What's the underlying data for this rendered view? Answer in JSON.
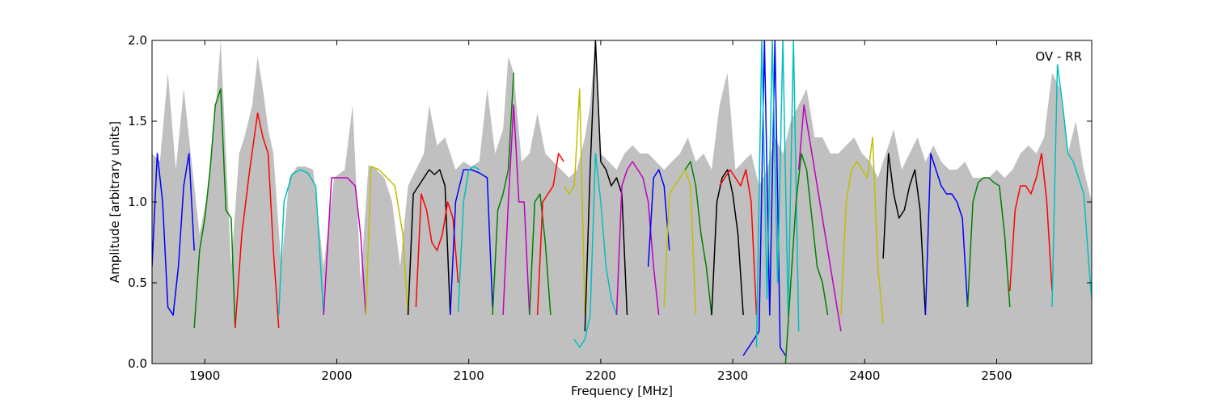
{
  "chart_data": {
    "type": "line",
    "title": "",
    "xlabel": "Frequency [MHz]",
    "ylabel": "Amplitude [arbitrary units]",
    "annotation": "OV - RR",
    "xlim": [
      1860,
      2572
    ],
    "ylim": [
      0.0,
      2.0
    ],
    "x_ticks": [
      1900,
      2000,
      2100,
      2200,
      2300,
      2400,
      2500
    ],
    "y_ticks": [
      0.0,
      0.5,
      1.0,
      1.5,
      2.0
    ],
    "y_tick_labels": [
      "0.0",
      "0.5",
      "1.0",
      "1.5",
      "2.0"
    ],
    "grid": false,
    "background_color": "#c0c0c0",
    "background_series": {
      "x": [
        1860,
        1866,
        1872,
        1878,
        1884,
        1890,
        1896,
        1902,
        1908,
        1912,
        1916,
        1920,
        1926,
        1930,
        1936,
        1940,
        1944,
        1948,
        1952,
        1958,
        1964,
        1970,
        1976,
        1982,
        1990,
        1998,
        2006,
        2012,
        2018,
        2024,
        2030,
        2036,
        2042,
        2048,
        2054,
        2060,
        2066,
        2070,
        2076,
        2082,
        2090,
        2096,
        2102,
        2108,
        2114,
        2120,
        2126,
        2130,
        2134,
        2140,
        2146,
        2152,
        2158,
        2164,
        2170,
        2176,
        2182,
        2188,
        2192,
        2196,
        2200,
        2206,
        2212,
        2218,
        2224,
        2230,
        2236,
        2242,
        2248,
        2254,
        2260,
        2266,
        2272,
        2278,
        2284,
        2290,
        2296,
        2302,
        2308,
        2314,
        2320,
        2326,
        2332,
        2338,
        2344,
        2350,
        2356,
        2362,
        2368,
        2374,
        2380,
        2386,
        2392,
        2398,
        2404,
        2410,
        2416,
        2422,
        2428,
        2434,
        2440,
        2446,
        2452,
        2458,
        2464,
        2470,
        2476,
        2482,
        2488,
        2494,
        2500,
        2506,
        2512,
        2518,
        2524,
        2530,
        2536,
        2542,
        2548,
        2554,
        2560,
        2566,
        2572
      ],
      "y": [
        1.3,
        1.25,
        1.8,
        1.2,
        1.7,
        1.25,
        0.8,
        1.05,
        1.55,
        2.0,
        1.3,
        0.6,
        1.3,
        1.4,
        1.6,
        1.9,
        1.7,
        1.45,
        1.3,
        0.6,
        1.15,
        1.22,
        1.22,
        1.2,
        0.6,
        1.15,
        1.2,
        1.6,
        0.5,
        1.23,
        1.2,
        1.15,
        1.0,
        0.6,
        1.1,
        1.2,
        1.3,
        1.6,
        1.35,
        1.4,
        1.2,
        1.25,
        1.22,
        1.25,
        1.7,
        1.3,
        1.45,
        1.9,
        1.8,
        1.25,
        1.3,
        1.55,
        1.3,
        1.25,
        1.2,
        1.15,
        1.2,
        1.4,
        1.6,
        2.0,
        1.3,
        1.25,
        1.2,
        1.3,
        1.35,
        1.3,
        1.3,
        1.25,
        1.2,
        1.25,
        1.3,
        1.4,
        1.25,
        1.3,
        1.2,
        1.6,
        1.8,
        1.2,
        1.25,
        1.3,
        1.1,
        1.2,
        1.4,
        1.3,
        1.5,
        1.6,
        1.7,
        1.4,
        1.4,
        1.3,
        1.3,
        1.35,
        1.4,
        1.3,
        1.25,
        1.15,
        1.3,
        1.45,
        1.2,
        1.3,
        1.4,
        1.25,
        1.35,
        1.25,
        1.2,
        1.2,
        1.25,
        1.15,
        1.15,
        1.15,
        1.2,
        1.15,
        1.2,
        1.3,
        1.35,
        1.3,
        1.4,
        1.8,
        1.7,
        1.3,
        1.5,
        1.2,
        1.0
      ]
    },
    "series": [
      {
        "color": "#0000ff",
        "x": [
          1860,
          1864,
          1868,
          1872,
          1876,
          1880,
          1884,
          1888,
          1892
        ],
        "y": [
          0.6,
          1.3,
          1.0,
          0.35,
          0.3,
          0.6,
          1.1,
          1.3,
          0.7
        ]
      },
      {
        "color": "#008000",
        "x": [
          1892,
          1896,
          1900,
          1904,
          1908,
          1912,
          1916,
          1920,
          1923
        ],
        "y": [
          0.22,
          0.7,
          0.9,
          1.2,
          1.6,
          1.7,
          0.95,
          0.9,
          0.22
        ]
      },
      {
        "color": "#ff0000",
        "x": [
          1923,
          1928,
          1934,
          1940,
          1944,
          1948,
          1952,
          1956
        ],
        "y": [
          0.22,
          0.8,
          1.2,
          1.55,
          1.4,
          1.3,
          0.7,
          0.22
        ]
      },
      {
        "color": "#00bfbf",
        "x": [
          1956,
          1960,
          1966,
          1972,
          1978,
          1984,
          1990
        ],
        "y": [
          0.3,
          1.0,
          1.17,
          1.2,
          1.18,
          1.1,
          0.3
        ]
      },
      {
        "color": "#bf00bf",
        "x": [
          1990,
          1996,
          2002,
          2008,
          2014,
          2018,
          2022
        ],
        "y": [
          0.3,
          1.15,
          1.15,
          1.15,
          1.1,
          0.8,
          0.3
        ]
      },
      {
        "color": "#bfbf00",
        "x": [
          2022,
          2026,
          2032,
          2038,
          2044,
          2050,
          2054
        ],
        "y": [
          0.3,
          1.22,
          1.2,
          1.15,
          1.1,
          0.8,
          0.3
        ]
      },
      {
        "color": "#000000",
        "x": [
          2054,
          2058,
          2062,
          2066,
          2070,
          2074,
          2078,
          2082,
          2086
        ],
        "y": [
          0.3,
          1.05,
          1.1,
          1.15,
          1.2,
          1.17,
          1.2,
          1.1,
          0.3
        ]
      },
      {
        "color": "#ff0000",
        "x": [
          2060,
          2064,
          2068,
          2072,
          2076,
          2080,
          2084,
          2088,
          2092
        ],
        "y": [
          0.35,
          1.05,
          0.95,
          0.75,
          0.7,
          0.8,
          1.0,
          0.9,
          0.5
        ]
      },
      {
        "color": "#0000ff",
        "x": [
          2086,
          2090,
          2096,
          2102,
          2108,
          2114,
          2118
        ],
        "y": [
          0.3,
          1.0,
          1.2,
          1.2,
          1.18,
          1.15,
          0.35
        ]
      },
      {
        "color": "#00bfbf",
        "x": [
          2092,
          2096,
          2100,
          2104,
          2108
        ],
        "y": [
          0.32,
          1.0,
          1.2,
          1.22,
          1.2
        ]
      },
      {
        "color": "#008000",
        "x": [
          2118,
          2122,
          2126,
          2130,
          2134
        ],
        "y": [
          0.3,
          0.95,
          1.05,
          1.2,
          1.8
        ]
      },
      {
        "color": "#bf00bf",
        "x": [
          2126,
          2130,
          2134,
          2138,
          2142,
          2146
        ],
        "y": [
          0.3,
          1.0,
          1.6,
          1.0,
          1.0,
          0.3
        ]
      },
      {
        "color": "#008000",
        "x": [
          2146,
          2150,
          2154,
          2158,
          2162
        ],
        "y": [
          0.3,
          1.0,
          1.05,
          0.75,
          0.3
        ]
      },
      {
        "color": "#ff0000",
        "x": [
          2152,
          2156,
          2160,
          2164,
          2168,
          2172
        ],
        "y": [
          0.3,
          1.0,
          1.05,
          1.1,
          1.3,
          1.25
        ]
      },
      {
        "color": "#bfbf00",
        "x": [
          2172,
          2176,
          2180,
          2184,
          2188
        ],
        "y": [
          1.1,
          1.05,
          1.1,
          1.7,
          0.3
        ]
      },
      {
        "color": "#00bfbf",
        "x": [
          2180,
          2184,
          2188,
          2192,
          2196,
          2200,
          2204,
          2208,
          2212
        ],
        "y": [
          0.15,
          0.1,
          0.15,
          0.3,
          1.3,
          1.0,
          0.6,
          0.4,
          0.3
        ]
      },
      {
        "color": "#000000",
        "x": [
          2188,
          2192,
          2196,
          2200,
          2204,
          2208,
          2212,
          2216,
          2220
        ],
        "y": [
          0.2,
          1.2,
          2.0,
          1.25,
          1.2,
          1.1,
          1.15,
          1.05,
          0.3
        ]
      },
      {
        "color": "#bf00bf",
        "x": [
          2212,
          2216,
          2220,
          2224,
          2228,
          2232,
          2236,
          2240,
          2244
        ],
        "y": [
          0.3,
          1.1,
          1.2,
          1.25,
          1.2,
          1.15,
          1.0,
          0.6,
          0.3
        ]
      },
      {
        "color": "#0000ff",
        "x": [
          2236,
          2240,
          2244,
          2248,
          2252
        ],
        "y": [
          0.6,
          1.15,
          1.2,
          1.1,
          0.7
        ]
      },
      {
        "color": "#bfbf00",
        "x": [
          2248,
          2252,
          2256,
          2260,
          2264,
          2268,
          2272
        ],
        "y": [
          0.35,
          1.05,
          1.1,
          1.15,
          1.2,
          1.1,
          0.3
        ]
      },
      {
        "color": "#008000",
        "x": [
          2264,
          2268,
          2272,
          2276,
          2280,
          2284
        ],
        "y": [
          1.2,
          1.25,
          1.1,
          0.8,
          0.6,
          0.3
        ]
      },
      {
        "color": "#000000",
        "x": [
          2284,
          2288,
          2292,
          2296,
          2300,
          2304,
          2308
        ],
        "y": [
          0.3,
          1.0,
          1.15,
          1.2,
          1.05,
          0.8,
          0.3
        ]
      },
      {
        "color": "#ff0000",
        "x": [
          2290,
          2294,
          2298,
          2302,
          2306,
          2310,
          2314,
          2318
        ],
        "y": [
          1.1,
          1.15,
          1.2,
          1.15,
          1.1,
          1.2,
          1.0,
          0.3
        ]
      },
      {
        "color": "#0000ff",
        "x": [
          2308,
          2312,
          2316,
          2320,
          2324,
          2328,
          2332,
          2336,
          2340
        ],
        "y": [
          0.05,
          0.1,
          0.15,
          0.2,
          2.0,
          0.3,
          2.0,
          0.1,
          0.05
        ]
      },
      {
        "color": "#00bfbf",
        "x": [
          2318,
          2322,
          2326,
          2330,
          2334,
          2338,
          2342,
          2346,
          2350
        ],
        "y": [
          0.1,
          2.0,
          0.4,
          2.0,
          0.5,
          2.0,
          0.3,
          2.0,
          0.2
        ]
      },
      {
        "color": "#008000",
        "x": [
          2340,
          2344,
          2348,
          2352,
          2356,
          2360,
          2364,
          2368,
          2372
        ],
        "y": [
          0.0,
          0.5,
          1.0,
          1.3,
          1.2,
          0.9,
          0.6,
          0.5,
          0.3
        ]
      },
      {
        "color": "#bf00bf",
        "x": [
          2350,
          2354,
          2358,
          2362,
          2366,
          2370,
          2374,
          2378,
          2382
        ],
        "y": [
          1.2,
          1.6,
          1.4,
          1.2,
          1.0,
          0.8,
          0.6,
          0.4,
          0.2
        ]
      },
      {
        "color": "#bfbf00",
        "x": [
          2382,
          2386,
          2390,
          2394,
          2398,
          2402,
          2406,
          2410,
          2414
        ],
        "y": [
          0.3,
          1.0,
          1.2,
          1.25,
          1.2,
          1.15,
          1.4,
          0.6,
          0.25
        ]
      },
      {
        "color": "#000000",
        "x": [
          2414,
          2418,
          2422,
          2426,
          2430,
          2434,
          2438,
          2442,
          2446
        ],
        "y": [
          0.65,
          1.3,
          1.05,
          0.9,
          0.95,
          1.1,
          1.2,
          0.95,
          0.3
        ]
      },
      {
        "color": "#0000ff",
        "x": [
          2446,
          2450,
          2454,
          2458,
          2462,
          2466,
          2470,
          2474,
          2478
        ],
        "y": [
          0.3,
          1.3,
          1.2,
          1.1,
          1.05,
          1.05,
          1.0,
          0.9,
          0.35
        ]
      },
      {
        "color": "#008000",
        "x": [
          2478,
          2482,
          2486,
          2490,
          2494,
          2498,
          2502,
          2506,
          2510
        ],
        "y": [
          0.35,
          1.0,
          1.12,
          1.15,
          1.15,
          1.12,
          1.1,
          0.8,
          0.35
        ]
      },
      {
        "color": "#ff0000",
        "x": [
          2510,
          2514,
          2518,
          2522,
          2526,
          2530,
          2534,
          2538,
          2542
        ],
        "y": [
          0.45,
          0.95,
          1.1,
          1.1,
          1.05,
          1.15,
          1.3,
          1.0,
          0.45
        ]
      },
      {
        "color": "#00bfbf",
        "x": [
          2542,
          2546,
          2550,
          2554,
          2558,
          2562,
          2566,
          2570,
          2572
        ],
        "y": [
          0.35,
          1.85,
          1.6,
          1.3,
          1.25,
          1.15,
          1.05,
          0.6,
          0.4
        ]
      }
    ]
  }
}
